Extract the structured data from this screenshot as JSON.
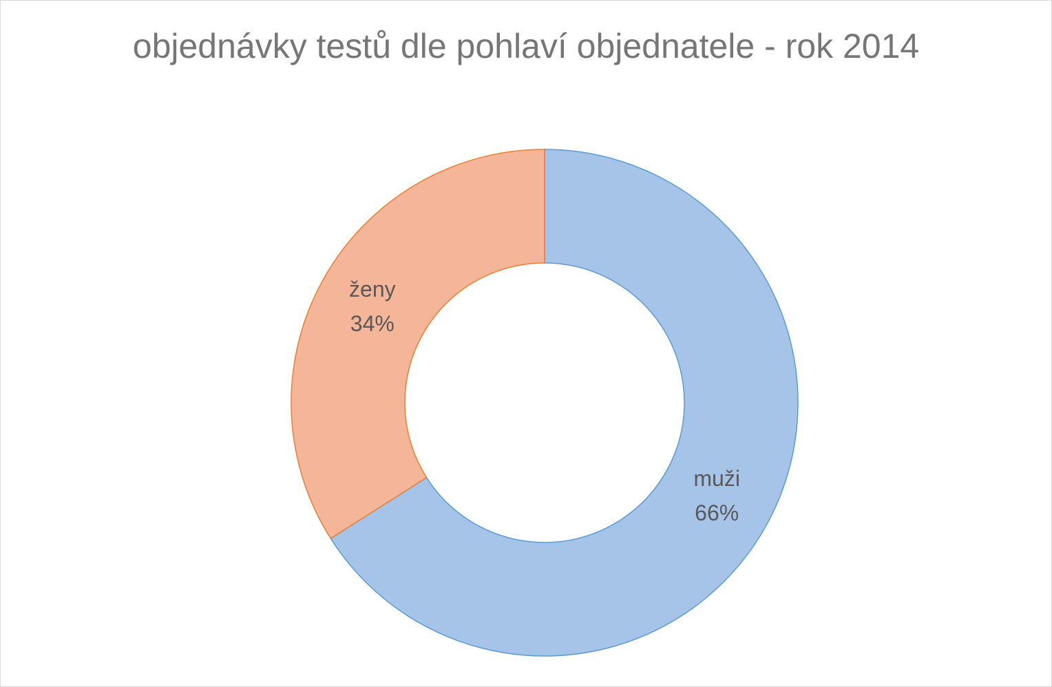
{
  "chart_data": {
    "type": "donut",
    "title": "objednávky testů dle pohlaví objednatele - rok 2014",
    "categories": [
      "muži",
      "ženy"
    ],
    "values": [
      66,
      34
    ],
    "value_labels": [
      "66%",
      "34%"
    ],
    "colors": [
      "#a6c3e8",
      "#f5b598"
    ],
    "edgecolors": [
      "#5b9bd5",
      "#ed7d31"
    ]
  }
}
